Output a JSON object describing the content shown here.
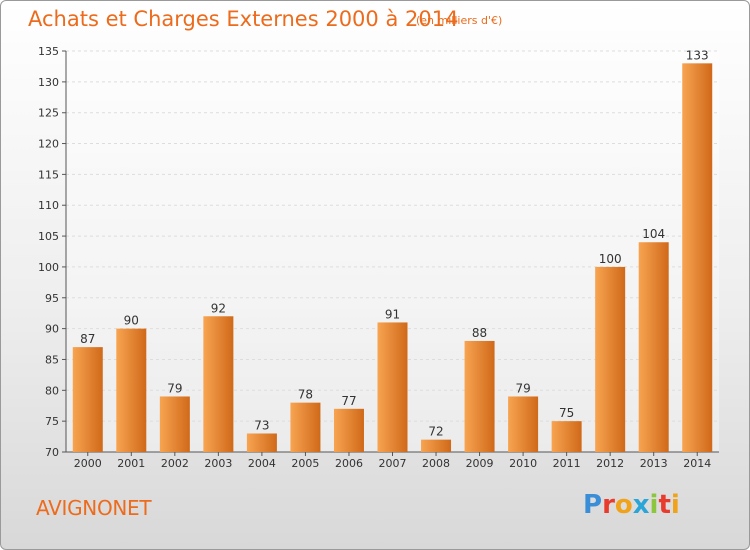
{
  "header": {
    "title": "Achats et Charges Externes 2000 à 2014",
    "subtitle": "(en milliers d'€)"
  },
  "footer": {
    "location": "AVIGNONET",
    "logo": "Proxiti",
    "logo_colors": [
      "#3a8ed8",
      "#e83b2e",
      "#f0a21b",
      "#2aa5d8",
      "#8cc63f",
      "#e83b2e",
      "#f0a21b"
    ]
  },
  "colors": {
    "bar_light": "#f7a450",
    "bar_dark": "#d0691a",
    "accent": "#ec6b1c",
    "grid": "#dddddd"
  },
  "chart_data": {
    "type": "bar",
    "title": "Achats et Charges Externes 2000 à 2014",
    "subtitle": "(en milliers d'€)",
    "categories": [
      "2000",
      "2001",
      "2002",
      "2003",
      "2004",
      "2005",
      "2006",
      "2007",
      "2008",
      "2009",
      "2010",
      "2011",
      "2012",
      "2013",
      "2014"
    ],
    "values": [
      87,
      90,
      79,
      92,
      73,
      78,
      77,
      91,
      72,
      88,
      79,
      75,
      100,
      104,
      133
    ],
    "ylim": [
      70,
      135
    ],
    "yticks": [
      70,
      75,
      80,
      85,
      90,
      95,
      100,
      105,
      110,
      115,
      120,
      125,
      130,
      135
    ],
    "xlabel": "",
    "ylabel": "",
    "grid": true
  }
}
